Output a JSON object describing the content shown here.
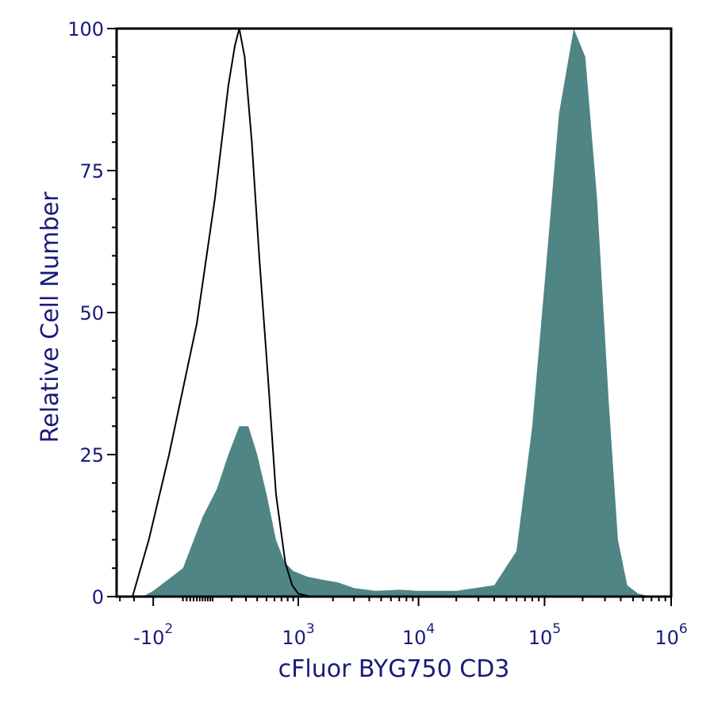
{
  "chart_data": {
    "type": "area",
    "title": "",
    "xlabel": "cFluor BYG750 CD3",
    "ylabel": "Relative Cell Number",
    "x_scale": "biexponential",
    "ylim": [
      0,
      100
    ],
    "y_ticks": [
      "0",
      "25",
      "50",
      "75",
      "100"
    ],
    "x_ticks": [
      {
        "base": "-10",
        "exp": "2",
        "value": -100
      },
      {
        "base": "10",
        "exp": "3",
        "value": 1000
      },
      {
        "base": "10",
        "exp": "4",
        "value": 10000
      },
      {
        "base": "10",
        "exp": "5",
        "value": 100000
      },
      {
        "base": "10",
        "exp": "6",
        "value": 1000000
      }
    ],
    "grid": false,
    "colors": {
      "filled": "#4f8584",
      "outline": "#000000",
      "axis_text": "#1a1a7a",
      "frame": "#000000"
    },
    "series": [
      {
        "style": "filled",
        "points": [
          [
            -150,
            0
          ],
          [
            -100,
            1
          ],
          [
            0,
            5
          ],
          [
            60,
            14
          ],
          [
            120,
            19
          ],
          [
            180,
            25
          ],
          [
            250,
            30
          ],
          [
            320,
            30
          ],
          [
            400,
            25
          ],
          [
            500,
            18
          ],
          [
            620,
            10
          ],
          [
            750,
            6
          ],
          [
            900,
            4.5
          ],
          [
            1200,
            3.5
          ],
          [
            1600,
            3
          ],
          [
            2200,
            2.5
          ],
          [
            3000,
            1.5
          ],
          [
            4500,
            1
          ],
          [
            7000,
            1.2
          ],
          [
            10000,
            1
          ],
          [
            20000,
            1
          ],
          [
            40000,
            2
          ],
          [
            60000,
            8
          ],
          [
            80000,
            30
          ],
          [
            100000,
            55
          ],
          [
            130000,
            85
          ],
          [
            170000,
            100
          ],
          [
            210000,
            95
          ],
          [
            260000,
            70
          ],
          [
            320000,
            35
          ],
          [
            380000,
            10
          ],
          [
            450000,
            2
          ],
          [
            550000,
            0.5
          ],
          [
            700000,
            0
          ]
        ]
      },
      {
        "style": "outline",
        "points": [
          [
            -210,
            0
          ],
          [
            -180,
            3
          ],
          [
            -120,
            10
          ],
          [
            -40,
            25
          ],
          [
            40,
            48
          ],
          [
            110,
            70
          ],
          [
            180,
            90
          ],
          [
            220,
            97
          ],
          [
            250,
            100
          ],
          [
            290,
            95
          ],
          [
            350,
            80
          ],
          [
            420,
            60
          ],
          [
            520,
            38
          ],
          [
            620,
            18
          ],
          [
            760,
            6
          ],
          [
            880,
            2
          ],
          [
            1000,
            0.5
          ],
          [
            1300,
            0
          ],
          [
            1800,
            0
          ]
        ]
      }
    ]
  }
}
